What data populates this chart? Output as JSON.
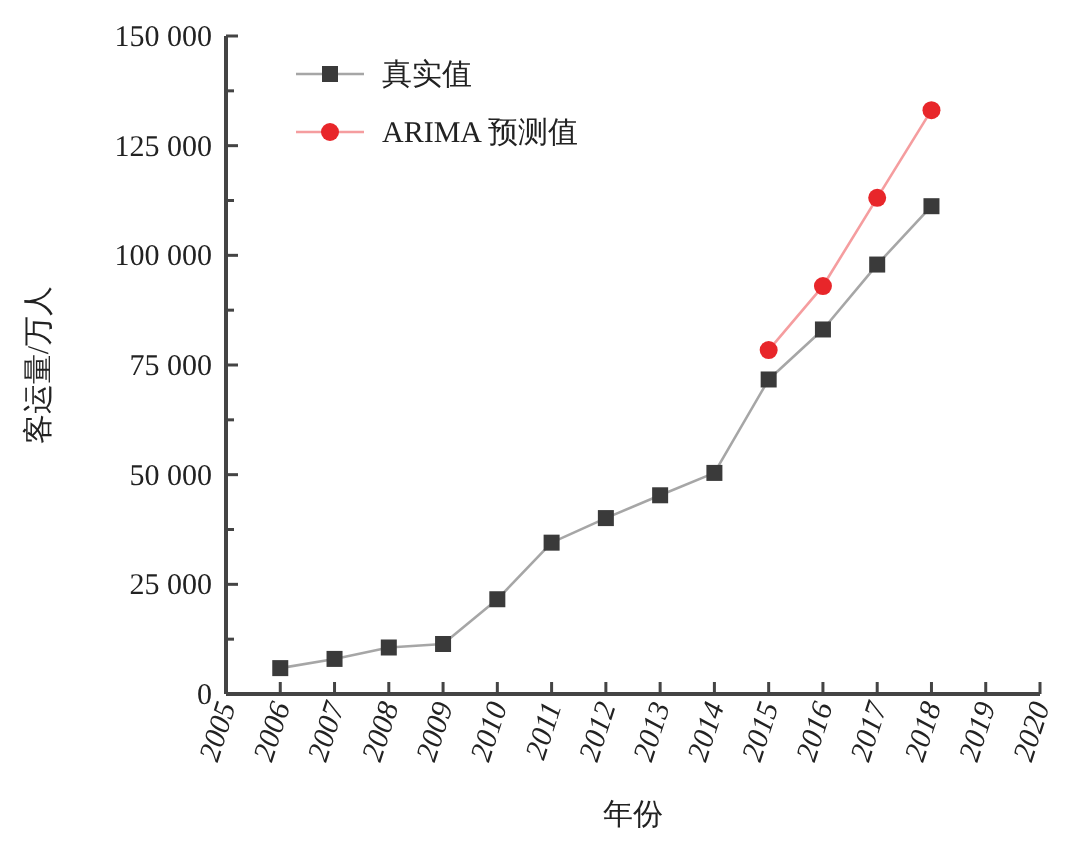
{
  "chart_data": {
    "type": "line",
    "xlabel": "年份",
    "ylabel": "客运量/万人",
    "x": [
      2006,
      2007,
      2008,
      2009,
      2010,
      2011,
      2012,
      2013,
      2014,
      2015,
      2016,
      2017,
      2018
    ],
    "series": [
      {
        "name": "真实值",
        "color": "#3a3a3a",
        "marker": "square",
        "values": [
          5900,
          8000,
          10600,
          11400,
          21600,
          34500,
          40100,
          45300,
          50400,
          71700,
          83100,
          97900,
          111200
        ]
      },
      {
        "name": "ARIMA 预测值",
        "color": "#e8262a",
        "marker": "circle",
        "values": [
          null,
          null,
          null,
          null,
          null,
          null,
          null,
          null,
          null,
          78400,
          93000,
          113100,
          133100
        ]
      }
    ],
    "xlim": [
      2005,
      2020
    ],
    "xticks": [
      2005,
      2006,
      2007,
      2008,
      2009,
      2010,
      2011,
      2012,
      2013,
      2014,
      2015,
      2016,
      2017,
      2018,
      2019,
      2020
    ],
    "ylim": [
      0,
      150000
    ],
    "yticks": [
      {
        "value": 0,
        "label": "0"
      },
      {
        "value": 12500,
        "label": null
      },
      {
        "value": 25000,
        "label": "25 000"
      },
      {
        "value": 37500,
        "label": null
      },
      {
        "value": 50000,
        "label": "50 000"
      },
      {
        "value": 62500,
        "label": null
      },
      {
        "value": 75000,
        "label": "75 000"
      },
      {
        "value": 87500,
        "label": null
      },
      {
        "value": 100000,
        "label": "100 000"
      },
      {
        "value": 112500,
        "label": null
      },
      {
        "value": 125000,
        "label": "125 000"
      },
      {
        "value": 137500,
        "label": null
      },
      {
        "value": 150000,
        "label": "150 000"
      }
    ],
    "legend": "top left",
    "line_style": "solid"
  }
}
